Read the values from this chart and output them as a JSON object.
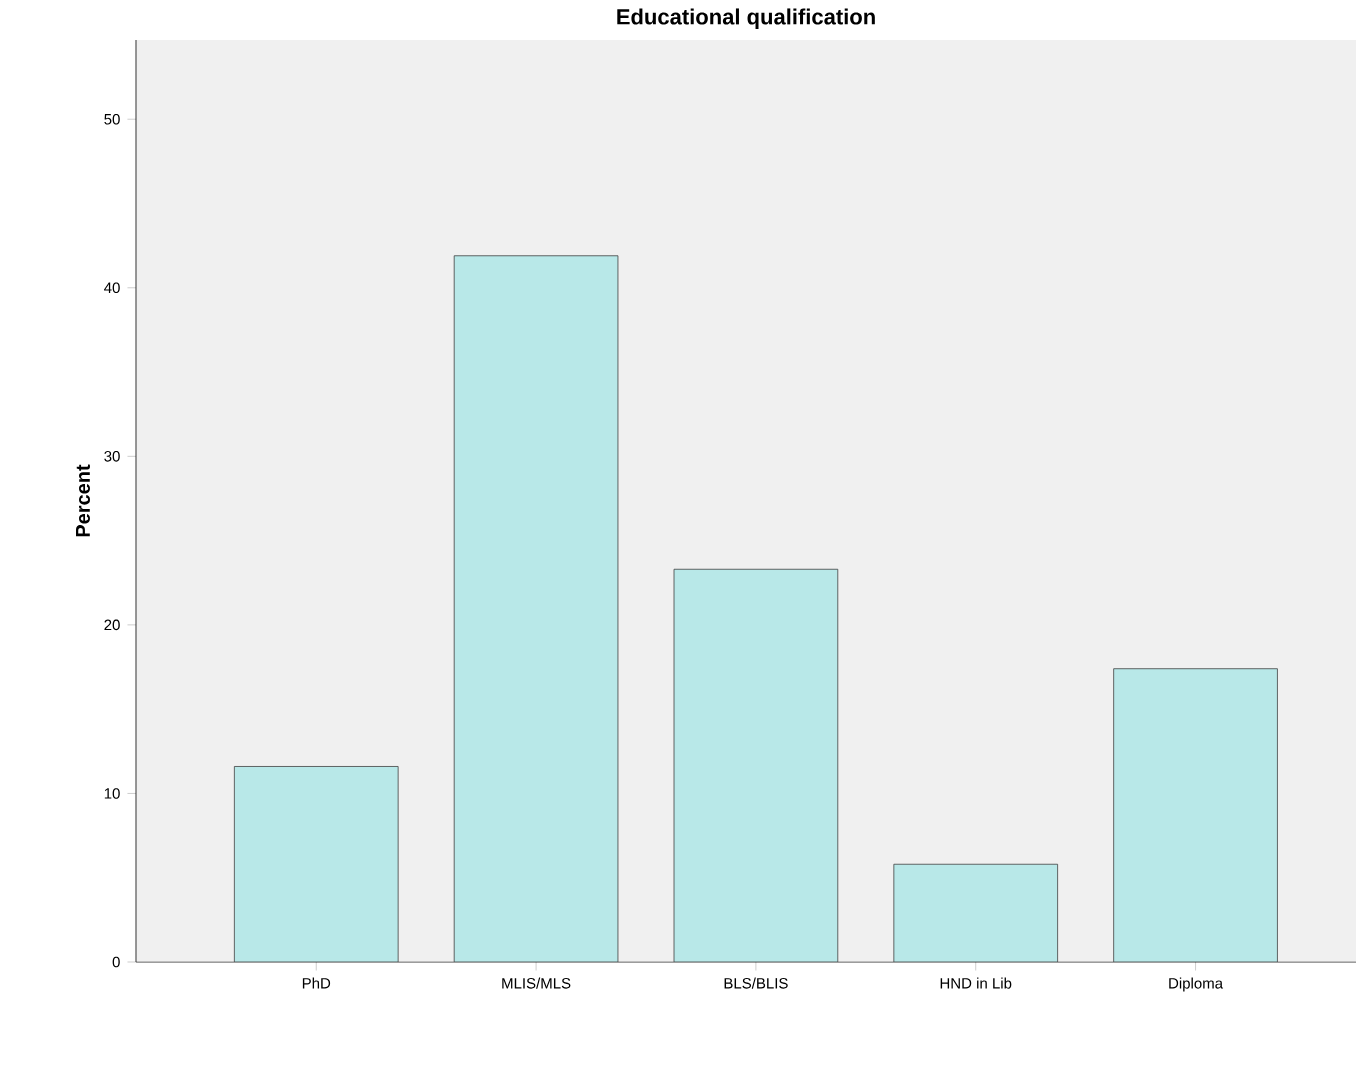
{
  "chart_data": {
    "type": "bar",
    "title": "Educational qualification",
    "ylabel": "Percent",
    "categories": [
      "PhD",
      "MLIS/MLS",
      "BLS/BLIS",
      "HND in Lib",
      "Diploma"
    ],
    "values": [
      11.6,
      41.9,
      23.3,
      5.8,
      17.4
    ],
    "color": "#b8e8e8",
    "ylim": [
      0,
      54.7
    ],
    "yticks": [
      0,
      10,
      20,
      30,
      40,
      50
    ]
  }
}
